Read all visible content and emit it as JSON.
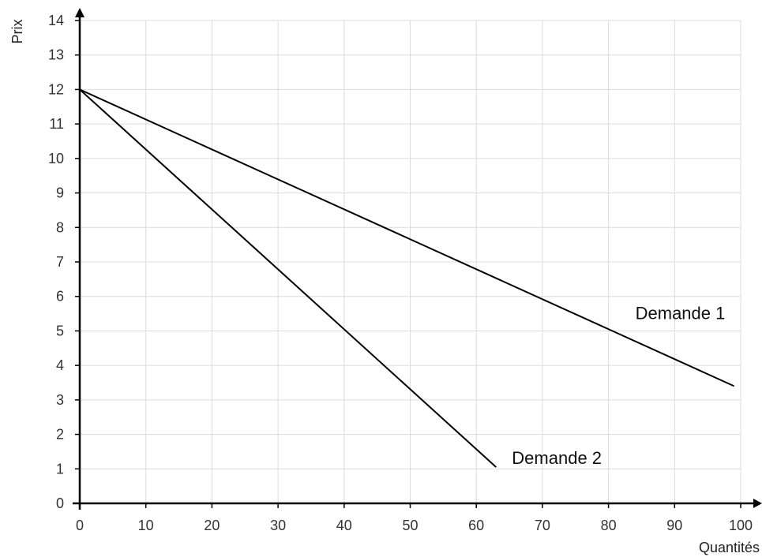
{
  "chart_data": {
    "type": "line",
    "title": "",
    "xlabel": "Quantités",
    "ylabel": "Prix",
    "xlim": [
      0,
      100
    ],
    "ylim": [
      0,
      14
    ],
    "xticks": [
      0,
      10,
      20,
      30,
      40,
      50,
      60,
      70,
      80,
      90,
      100
    ],
    "yticks": [
      0,
      1,
      2,
      3,
      4,
      5,
      6,
      7,
      8,
      9,
      10,
      11,
      12,
      13,
      14
    ],
    "grid": true,
    "legend": "none",
    "series": [
      {
        "name": "Demande 1",
        "x": [
          0,
          99
        ],
        "y": [
          12,
          3.4
        ]
      },
      {
        "name": "Demande 2",
        "x": [
          0,
          63
        ],
        "y": [
          12,
          1.05
        ]
      }
    ]
  }
}
